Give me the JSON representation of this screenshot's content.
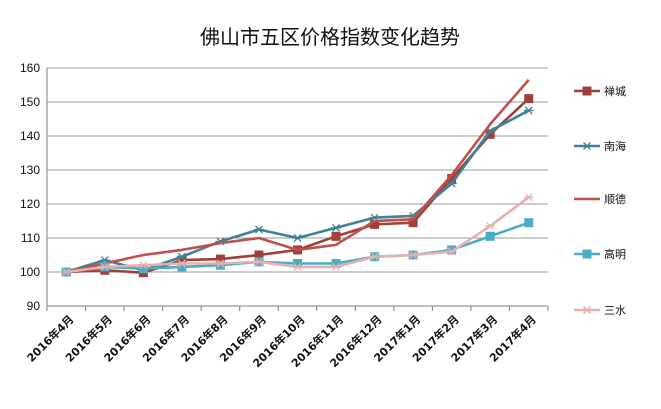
{
  "chart_data": {
    "type": "line",
    "title": "佛山市五区价格指数变化趋势",
    "xlabel": "",
    "ylabel": "",
    "categories": [
      "2016年4月",
      "2016年5月",
      "2016年6月",
      "2016年7月",
      "2016年8月",
      "2016年9月",
      "2016年10月",
      "2016年11月",
      "2016年12月",
      "2017年1月",
      "2017年2月",
      "2017年3月",
      "2017年4月"
    ],
    "ylim": [
      90,
      160
    ],
    "yticks": [
      "90",
      "100",
      "110",
      "120",
      "130",
      "140",
      "150",
      "160"
    ],
    "grid": "horizontal",
    "legend_position": "right",
    "series": [
      {
        "name": "禅城",
        "marker": "square",
        "color": "#a0403a",
        "values": [
          100,
          100.5,
          99.8,
          103.5,
          103.8,
          105,
          106.5,
          110.5,
          114,
          114.5,
          127.5,
          140.5,
          151
        ]
      },
      {
        "name": "南海",
        "marker": "asterisk",
        "color": "#3f8296",
        "values": [
          100,
          103.5,
          100.5,
          104.5,
          109,
          112.5,
          110,
          113,
          116,
          116.5,
          126,
          141.5,
          147.5
        ]
      },
      {
        "name": "顺德",
        "marker": "none",
        "color": "#c0504d",
        "values": [
          100,
          102.5,
          105,
          106.5,
          108.5,
          110,
          106.5,
          108,
          115,
          115.5,
          128.5,
          143.5,
          156.5
        ]
      },
      {
        "name": "高明",
        "marker": "square",
        "color": "#4bacc6",
        "values": [
          100,
          101.5,
          101,
          101.5,
          102,
          103,
          102.5,
          102.5,
          104.5,
          105,
          106.5,
          110.5,
          114.5
        ]
      },
      {
        "name": "三水",
        "marker": "asterisk",
        "color": "#e6b0ae",
        "values": [
          100,
          101.5,
          102,
          102.5,
          102.5,
          103,
          101.5,
          101.5,
          104.5,
          105,
          106,
          113.5,
          122
        ]
      }
    ]
  }
}
